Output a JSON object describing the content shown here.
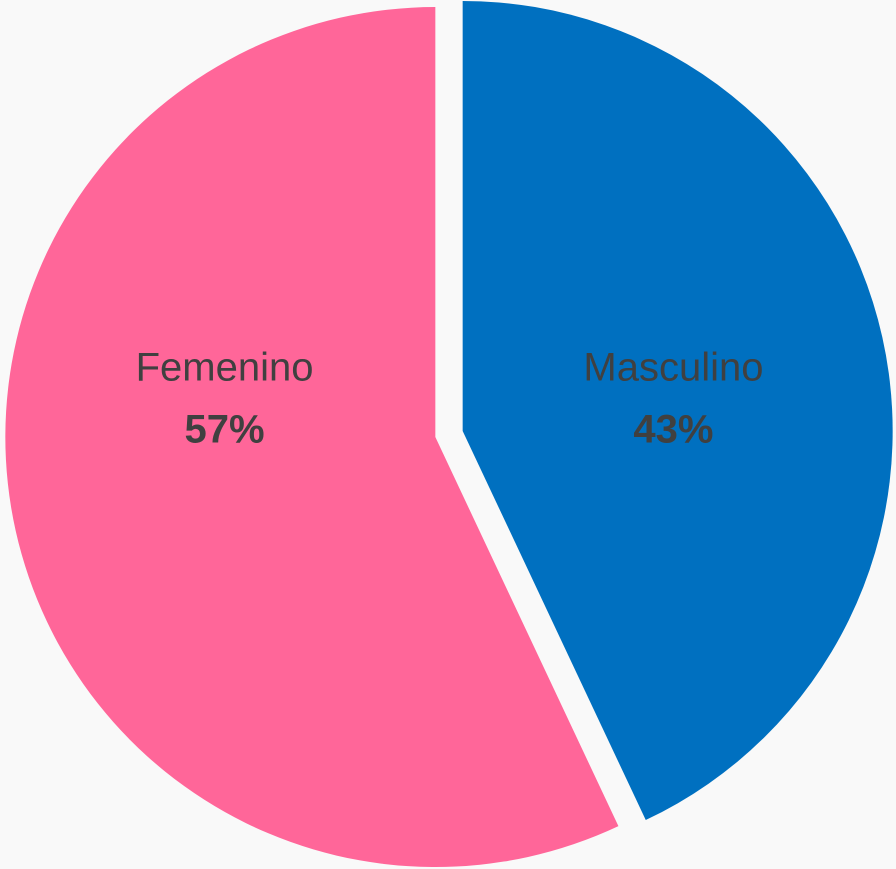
{
  "chart_data": {
    "type": "pie",
    "categories": [
      "Masculino",
      "Femenino"
    ],
    "values": [
      43,
      57
    ],
    "value_labels": [
      "43%",
      "57%"
    ],
    "colors": [
      "#0070c0",
      "#ff6699"
    ]
  }
}
